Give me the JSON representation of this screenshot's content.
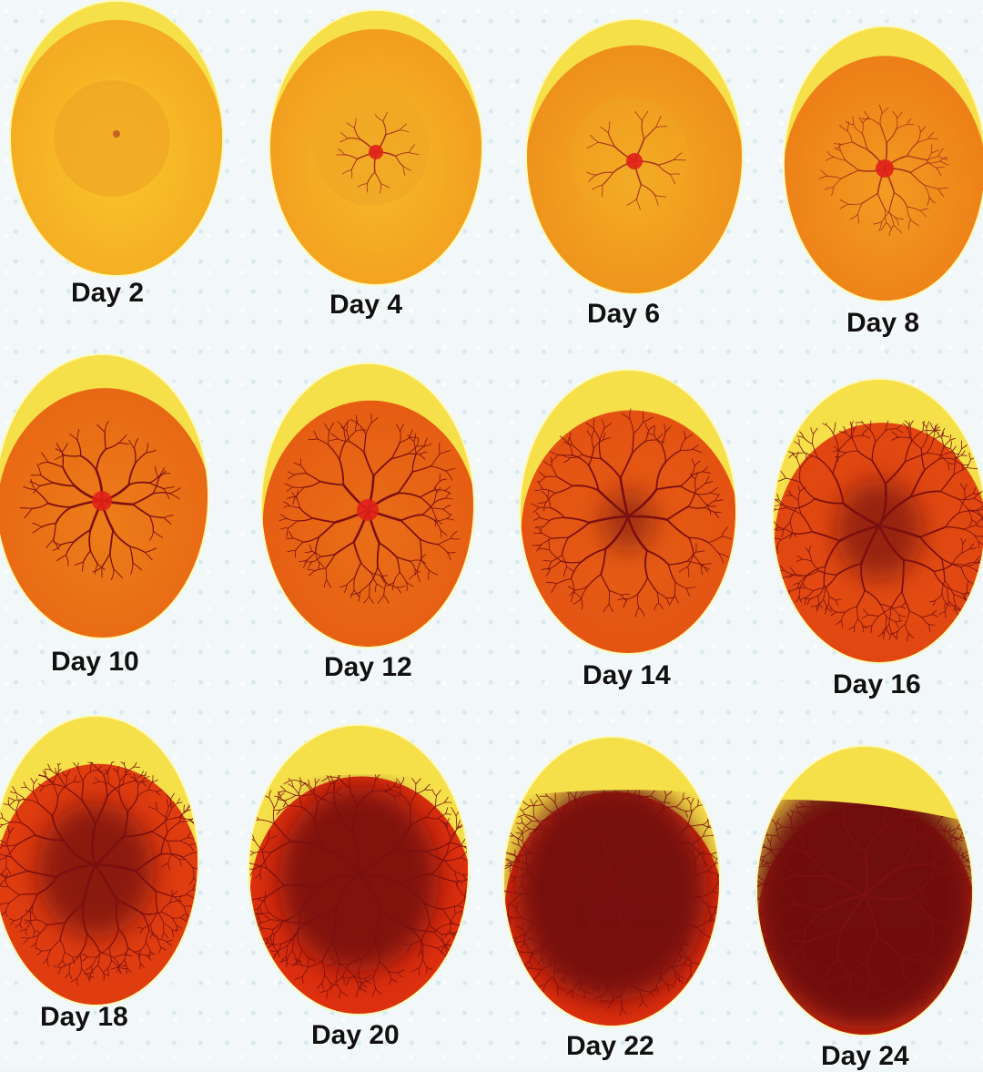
{
  "eggs": [
    {
      "label": "Day 2",
      "stage": 1
    },
    {
      "label": "Day 4",
      "stage": 2
    },
    {
      "label": "Day 6",
      "stage": 3
    },
    {
      "label": "Day 8",
      "stage": 4
    },
    {
      "label": "Day 10",
      "stage": 5
    },
    {
      "label": "Day 12",
      "stage": 6
    },
    {
      "label": "Day 14",
      "stage": 7
    },
    {
      "label": "Day 16",
      "stage": 8
    },
    {
      "label": "Day 18",
      "stage": 9
    },
    {
      "label": "Day 20",
      "stage": 10
    },
    {
      "label": "Day 22",
      "stage": 11
    },
    {
      "label": "Day 24",
      "stage": 12
    }
  ],
  "colors": {
    "shell_yellow": "#f5e04a",
    "yolk_yellow": "#f2b51e",
    "mid_orange": "#ec7a16",
    "deep_red": "#d9260f",
    "blood_dark": "#6d0a0a"
  }
}
